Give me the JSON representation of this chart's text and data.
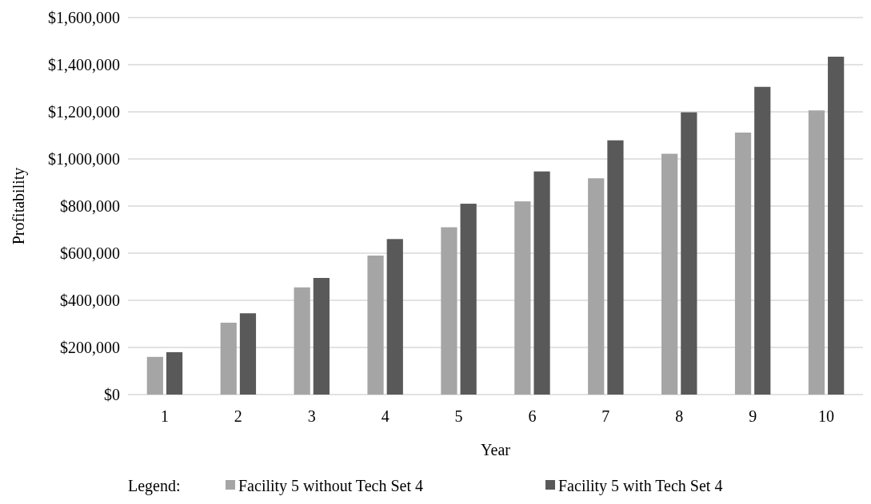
{
  "chart_data": {
    "type": "bar",
    "xlabel": "Year",
    "ylabel": "Profitability",
    "legend_title": "Legend:",
    "categories": [
      "1",
      "2",
      "3",
      "4",
      "5",
      "6",
      "7",
      "8",
      "9",
      "10"
    ],
    "series": [
      {
        "name": "Facility 5 without Tech Set 4",
        "color": "#a5a5a5",
        "values": [
          160000,
          305000,
          455000,
          590000,
          710000,
          820000,
          918000,
          1022000,
          1112000,
          1206000
        ]
      },
      {
        "name": "Facility 5 with Tech Set 4",
        "color": "#595959",
        "values": [
          180000,
          345000,
          495000,
          660000,
          810000,
          947000,
          1079000,
          1198000,
          1306000,
          1434000
        ]
      }
    ],
    "ylim": [
      0,
      1600000
    ],
    "yticks": [
      {
        "value": 0,
        "label": "$0"
      },
      {
        "value": 200000,
        "label": "$200,000"
      },
      {
        "value": 400000,
        "label": "$400,000"
      },
      {
        "value": 600000,
        "label": "$600,000"
      },
      {
        "value": 800000,
        "label": "$800,000"
      },
      {
        "value": 1000000,
        "label": "$1,000,000"
      },
      {
        "value": 1200000,
        "label": "$1,200,000"
      },
      {
        "value": 1400000,
        "label": "$1,400,000"
      },
      {
        "value": 1600000,
        "label": "$1,600,000"
      }
    ],
    "grid": "y",
    "legend": "bottom"
  }
}
